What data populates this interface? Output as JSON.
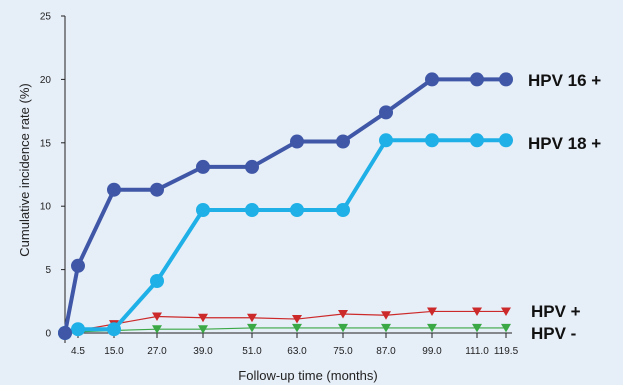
{
  "chart_data": {
    "type": "line",
    "title": "",
    "xlabel": "Follow-up time (months)",
    "ylabel": "Cumulative incidence rate (%)",
    "ylim": [
      0,
      25
    ],
    "y_ticks": [
      "0",
      "5",
      "10",
      "15",
      "20",
      "25"
    ],
    "x": [
      0,
      4.5,
      15.0,
      27.0,
      39.0,
      51.0,
      63.0,
      75.0,
      87.0,
      99.0,
      111.0,
      119.5
    ],
    "x_tick_labels": [
      "4.5",
      "15.0",
      "27.0",
      "39.0",
      "51.0",
      "63.0",
      "75.0",
      "87.0",
      "99.0",
      "111.0",
      "119.5"
    ],
    "grid": false,
    "series": [
      {
        "name": "HPV 16 +",
        "color": "#3f57a6",
        "marker": "circle",
        "values": [
          0,
          5.3,
          11.3,
          11.3,
          13.1,
          13.1,
          15.1,
          15.1,
          17.4,
          20.0,
          20.0,
          20.0
        ]
      },
      {
        "name": "HPV 18 +",
        "color": "#1eb0e6",
        "marker": "circle",
        "values": [
          0,
          0.3,
          0.3,
          4.1,
          9.7,
          9.7,
          9.7,
          9.7,
          15.2,
          15.2,
          15.2,
          15.2
        ]
      },
      {
        "name": "HPV +",
        "color": "#cc2a2a",
        "marker": "triangle-down",
        "values": [
          0,
          0.2,
          0.7,
          1.3,
          1.2,
          1.2,
          1.1,
          1.5,
          1.4,
          1.7,
          1.7,
          1.7
        ]
      },
      {
        "name": "HPV -",
        "color": "#3aa845",
        "marker": "triangle-down",
        "values": [
          0,
          0.1,
          0.2,
          0.3,
          0.3,
          0.4,
          0.4,
          0.4,
          0.4,
          0.4,
          0.4,
          0.4
        ]
      }
    ]
  }
}
